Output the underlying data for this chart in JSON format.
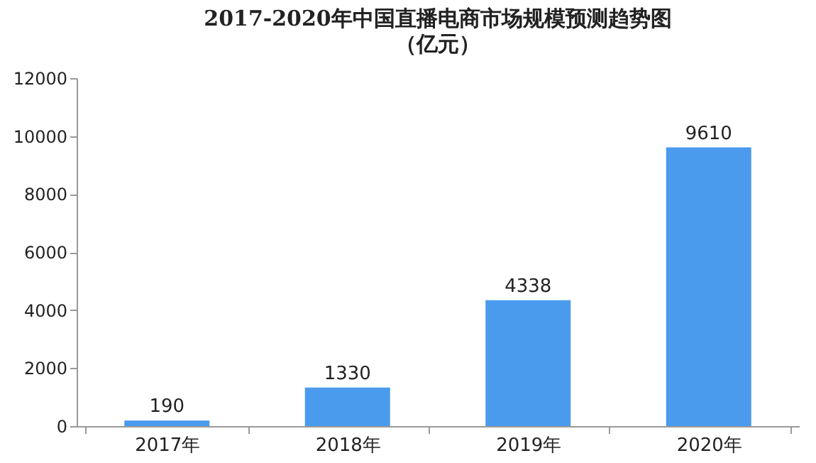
{
  "chart_data": {
    "type": "bar",
    "title": "2017-2020年中国直播电商市场规模预测趋势图",
    "subtitle": "（亿元）",
    "categories": [
      "2017年",
      "2018年",
      "2019年",
      "2020年"
    ],
    "values": [
      190,
      1330,
      4338,
      9610
    ],
    "color": "#4a9bee",
    "ylim": [
      0,
      12000
    ],
    "yticks": [
      0,
      2000,
      4000,
      6000,
      8000,
      10000,
      12000
    ],
    "data_labels": true
  }
}
